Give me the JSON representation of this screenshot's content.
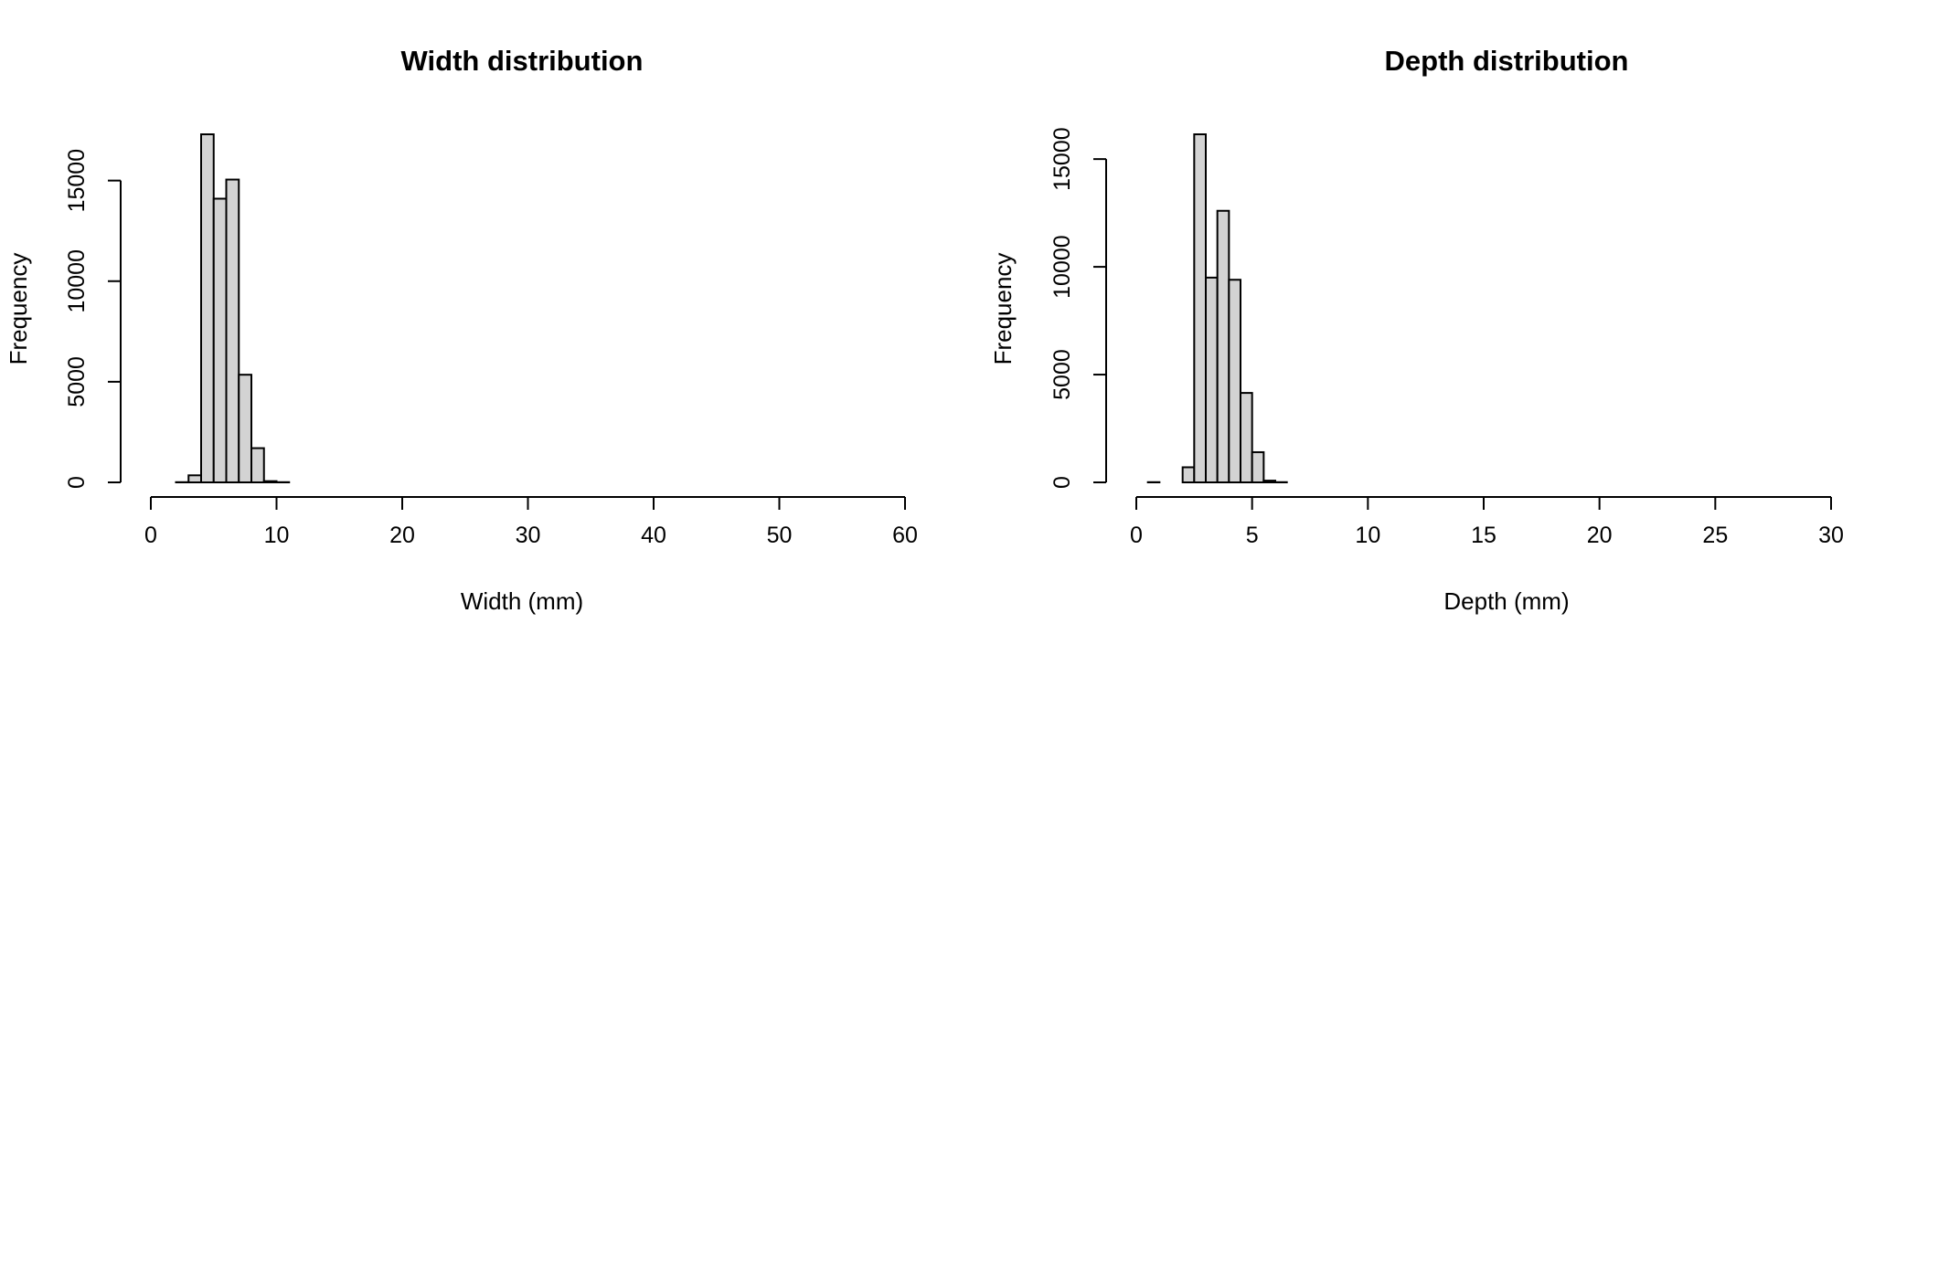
{
  "chart_data": [
    {
      "type": "bar",
      "title": "Width distribution",
      "xlabel": "Width (mm)",
      "ylabel": "Frequency",
      "bin_width": 1,
      "x_start": 0,
      "xlim": [
        0,
        60
      ],
      "ylim": [
        0,
        17300
      ],
      "x_ticks": [
        0,
        10,
        20,
        30,
        40,
        50,
        60
      ],
      "y_ticks": [
        0,
        5000,
        10000,
        15000
      ],
      "values": [
        0,
        0,
        10,
        350,
        17300,
        14100,
        15050,
        5350,
        1700,
        60,
        10,
        0,
        0,
        0,
        0,
        0,
        0,
        0,
        0,
        0,
        0,
        0,
        0,
        0,
        0,
        0,
        0,
        0,
        0,
        0,
        0,
        0,
        0,
        0,
        0,
        0,
        0,
        0,
        0,
        0,
        0,
        0,
        0,
        0,
        0,
        0,
        0,
        0,
        0,
        0,
        0,
        0,
        0,
        0,
        0,
        0,
        0,
        0,
        0
      ],
      "grid": false,
      "fill_color": "#d3d3d3",
      "stroke_color": "#000000"
    },
    {
      "type": "bar",
      "title": "Depth distribution",
      "xlabel": "Depth (mm)",
      "ylabel": "Frequency",
      "bin_width": 0.5,
      "x_start": 0,
      "xlim": [
        0,
        30
      ],
      "ylim": [
        0,
        16150
      ],
      "x_ticks": [
        0,
        5,
        10,
        15,
        20,
        25,
        30
      ],
      "y_ticks": [
        0,
        5000,
        10000,
        15000
      ],
      "values": [
        0,
        10,
        0,
        0,
        700,
        16150,
        9500,
        12600,
        9400,
        4150,
        1400,
        80,
        10,
        0,
        0,
        0,
        0,
        0,
        0,
        0,
        0,
        0,
        0,
        0,
        0,
        0,
        0,
        0,
        0,
        0,
        0,
        0,
        0,
        0,
        0,
        0,
        0,
        0,
        0,
        0,
        0,
        0,
        0,
        0,
        0,
        0,
        0,
        0,
        0,
        0,
        0,
        0,
        0,
        0,
        0,
        0,
        0,
        0,
        0,
        0,
        0,
        0,
        0,
        0
      ],
      "grid": false,
      "fill_color": "#d3d3d3",
      "stroke_color": "#000000"
    }
  ]
}
